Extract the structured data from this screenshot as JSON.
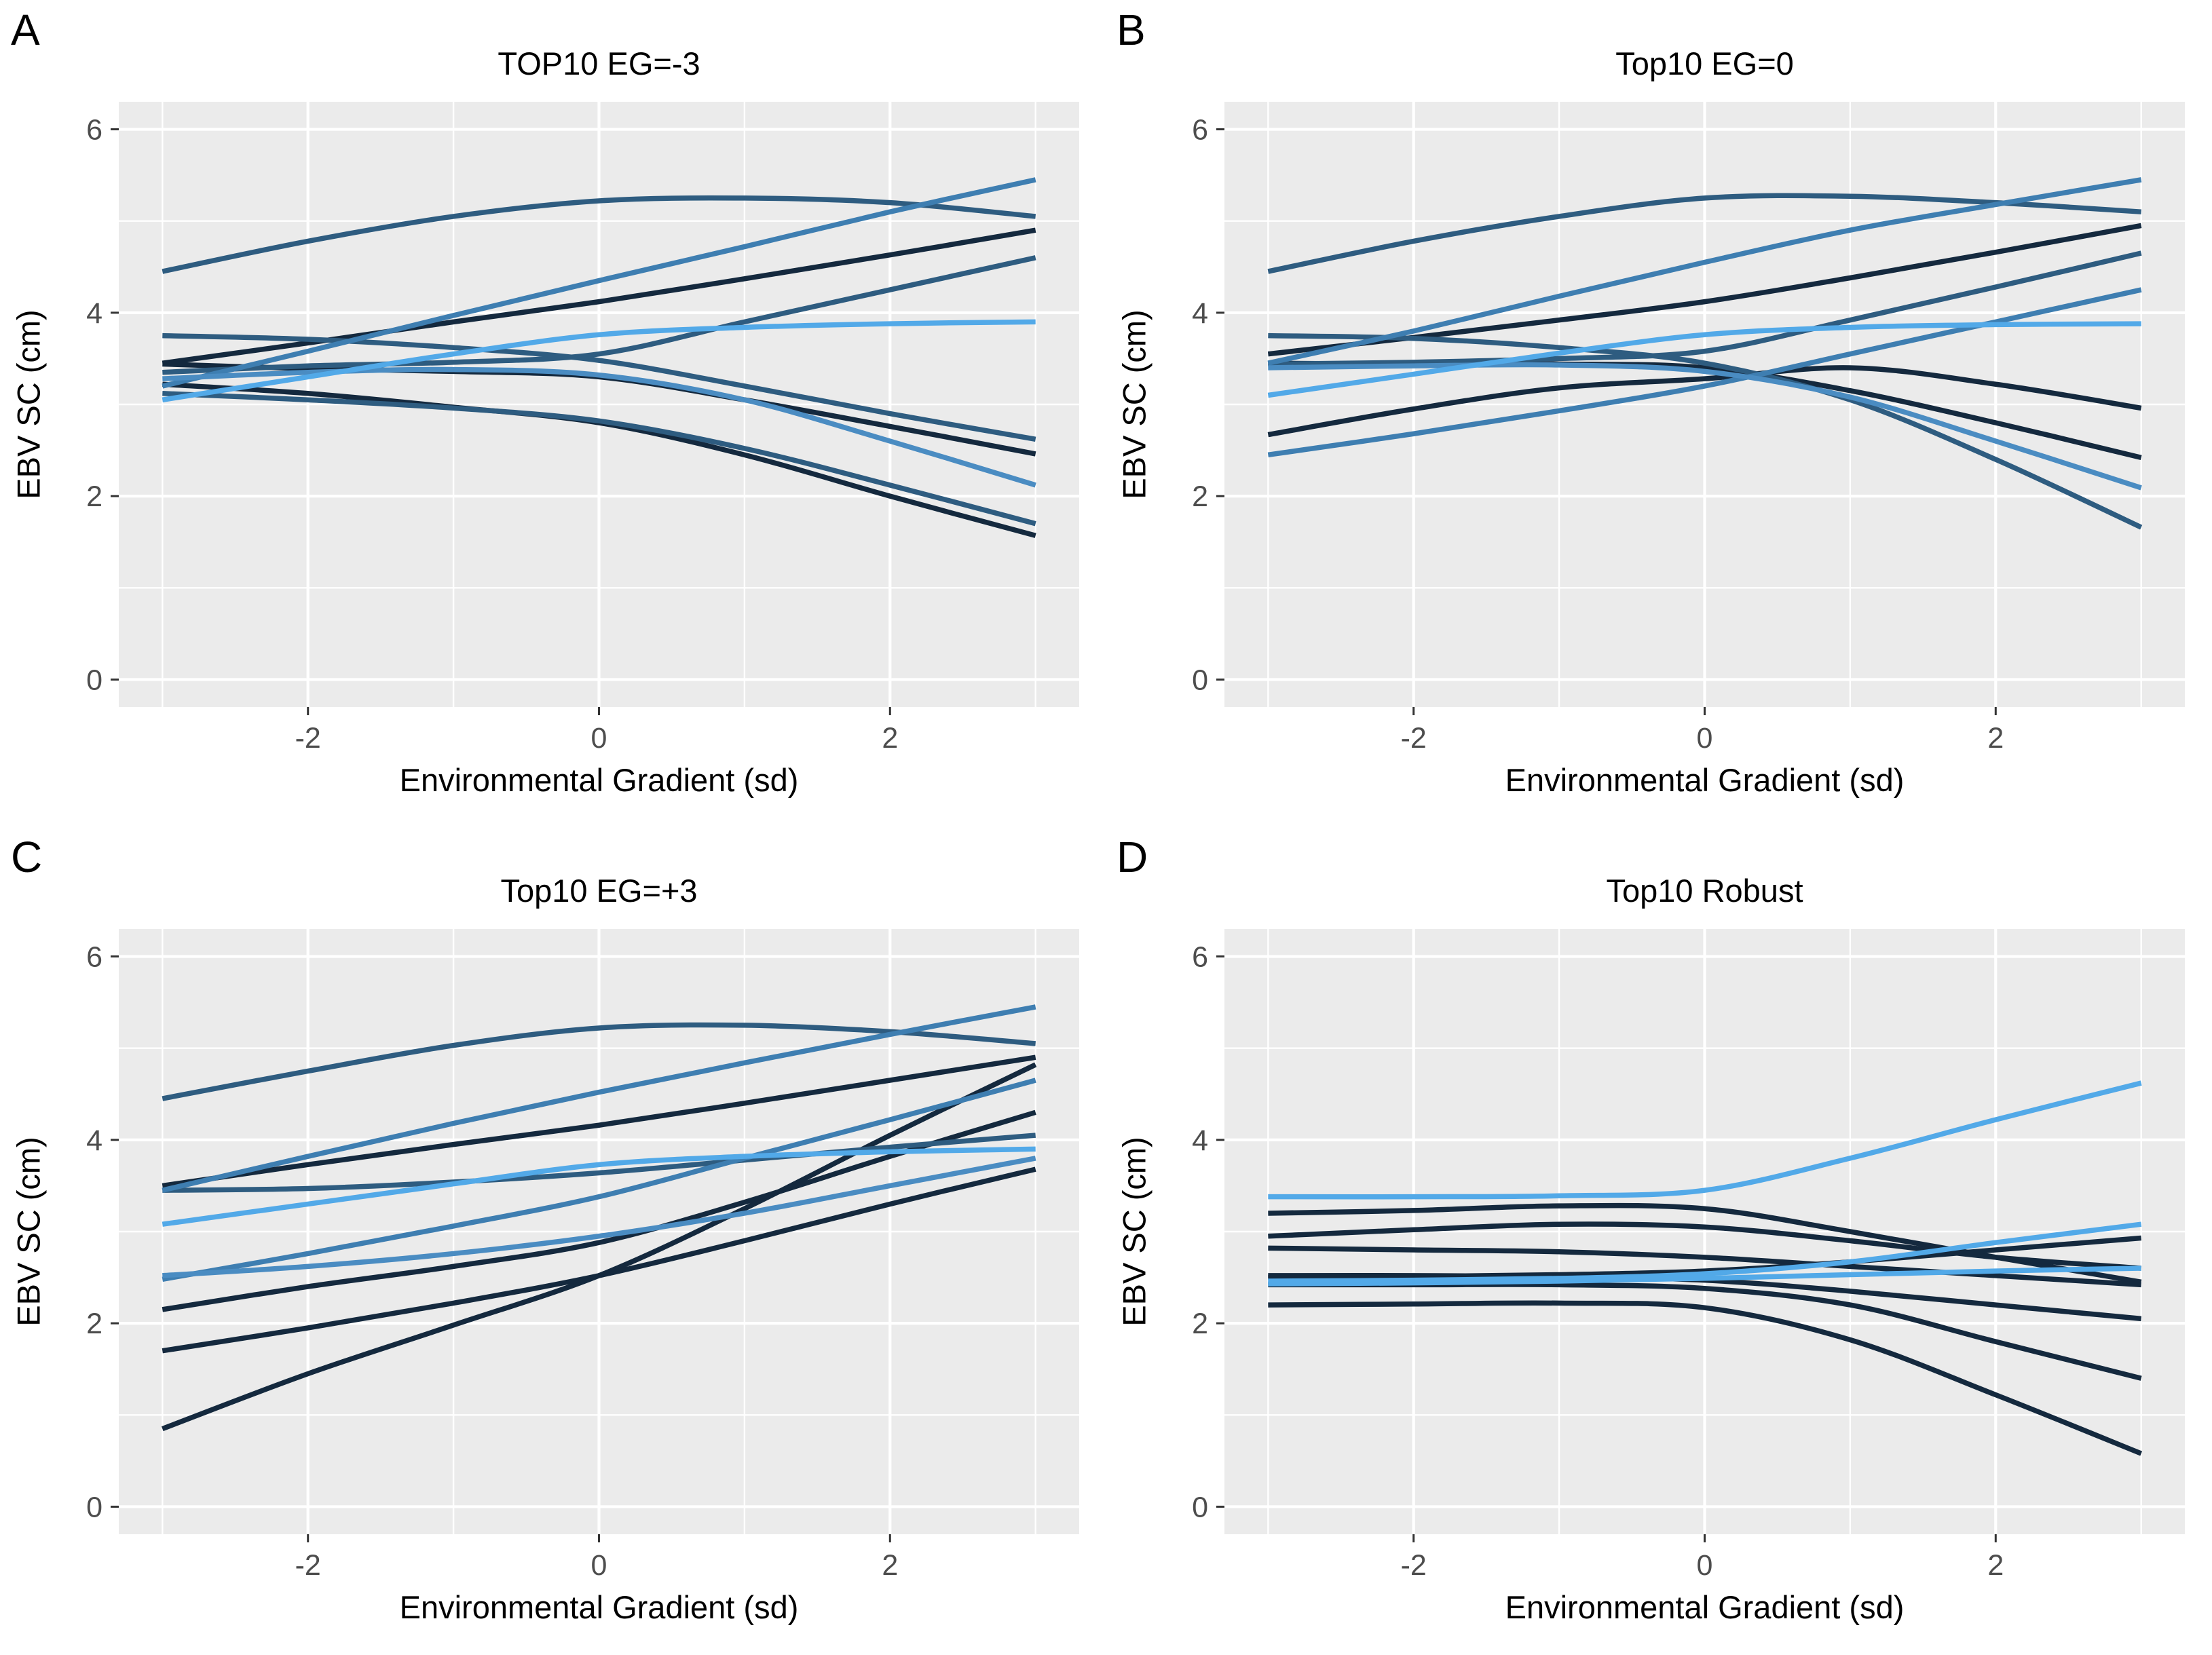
{
  "style": {
    "page_bg": "#FFFFFF",
    "panel_bg": "#EBEBEB",
    "grid_color": "#FFFFFF",
    "tick_color": "#333333",
    "tick_text_color": "#4D4D4D",
    "text_color": "#000000",
    "palette": {
      "navy": "#14293E",
      "steel_blue": "#2E5C80",
      "medium_blue": "#3E7EB1",
      "medium_light_blue": "#4A8CC2",
      "light_blue": "#52A9E8"
    }
  },
  "chart_data": [
    {
      "type": "line",
      "panel_label": "A",
      "title": "TOP10 EG=-3",
      "xlabel": "Environmental Gradient (sd)",
      "ylabel": "EBV SC (cm)",
      "x": [
        -3,
        -2,
        -1,
        0,
        1,
        2,
        3
      ],
      "xlim": [
        -3.3,
        3.3
      ],
      "ylim": [
        -0.3,
        6.3
      ],
      "x_ticks": [
        -2,
        0,
        2
      ],
      "y_ticks": [
        0,
        2,
        4,
        6
      ],
      "x_minor": [
        -3,
        -1,
        1,
        3
      ],
      "y_minor": [
        1,
        3,
        5
      ],
      "grid": true,
      "legend": "none",
      "series": [
        {
          "name": "line-1",
          "color": "#14293E",
          "values": [
            3.45,
            3.67,
            3.9,
            4.12,
            4.37,
            4.63,
            4.9
          ]
        },
        {
          "name": "line-2",
          "color": "#14293E",
          "values": [
            3.44,
            3.39,
            3.36,
            3.3,
            3.05,
            2.76,
            2.46
          ]
        },
        {
          "name": "line-3",
          "color": "#14293E",
          "values": [
            3.22,
            3.12,
            2.97,
            2.8,
            2.45,
            2.0,
            1.57
          ]
        },
        {
          "name": "line-4",
          "color": "#2E5C80",
          "values": [
            4.45,
            4.78,
            5.05,
            5.22,
            5.25,
            5.2,
            5.05
          ]
        },
        {
          "name": "line-5",
          "color": "#2E5C80",
          "values": [
            3.35,
            3.42,
            3.46,
            3.55,
            3.9,
            4.25,
            4.6
          ]
        },
        {
          "name": "line-6",
          "color": "#2E5C80",
          "values": [
            3.75,
            3.71,
            3.62,
            3.48,
            3.2,
            2.9,
            2.62
          ]
        },
        {
          "name": "line-7",
          "color": "#2E5C80",
          "values": [
            3.12,
            3.05,
            2.96,
            2.82,
            2.52,
            2.12,
            1.7
          ]
        },
        {
          "name": "line-8",
          "color": "#3E7EB1",
          "values": [
            3.2,
            3.58,
            3.97,
            4.35,
            4.72,
            5.1,
            5.45
          ]
        },
        {
          "name": "line-9",
          "color": "#4A8CC2",
          "values": [
            3.28,
            3.35,
            3.38,
            3.32,
            3.05,
            2.6,
            2.12
          ]
        },
        {
          "name": "line-10",
          "color": "#52A9E8",
          "values": [
            3.05,
            3.3,
            3.55,
            3.76,
            3.84,
            3.88,
            3.9
          ]
        }
      ]
    },
    {
      "type": "line",
      "panel_label": "B",
      "title": "Top10 EG=0",
      "xlabel": "Environmental Gradient (sd)",
      "ylabel": "EBV SC (cm)",
      "x": [
        -3,
        -2,
        -1,
        0,
        1,
        2,
        3
      ],
      "xlim": [
        -3.3,
        3.3
      ],
      "ylim": [
        -0.3,
        6.3
      ],
      "x_ticks": [
        -2,
        0,
        2
      ],
      "y_ticks": [
        0,
        2,
        4,
        6
      ],
      "x_minor": [
        -3,
        -1,
        1,
        3
      ],
      "y_minor": [
        1,
        3,
        5
      ],
      "grid": true,
      "legend": "none",
      "series": [
        {
          "name": "line-1",
          "color": "#14293E",
          "values": [
            3.55,
            3.73,
            3.92,
            4.12,
            4.38,
            4.66,
            4.95
          ]
        },
        {
          "name": "line-2",
          "color": "#14293E",
          "values": [
            2.67,
            2.95,
            3.18,
            3.28,
            3.4,
            3.22,
            2.96
          ]
        },
        {
          "name": "line-3",
          "color": "#14293E",
          "values": [
            3.45,
            3.44,
            3.44,
            3.4,
            3.15,
            2.8,
            2.42
          ]
        },
        {
          "name": "line-4",
          "color": "#2E5C80",
          "values": [
            4.45,
            4.78,
            5.05,
            5.25,
            5.27,
            5.2,
            5.1
          ]
        },
        {
          "name": "line-5",
          "color": "#2E5C80",
          "values": [
            3.44,
            3.46,
            3.5,
            3.58,
            3.92,
            4.28,
            4.65
          ]
        },
        {
          "name": "line-6",
          "color": "#2E5C80",
          "values": [
            3.75,
            3.72,
            3.62,
            3.45,
            3.05,
            2.4,
            1.66
          ]
        },
        {
          "name": "line-7",
          "color": "#3E7EB1",
          "values": [
            3.45,
            3.8,
            4.18,
            4.55,
            4.9,
            5.18,
            5.45
          ]
        },
        {
          "name": "line-8",
          "color": "#3E7EB1",
          "values": [
            2.45,
            2.68,
            2.93,
            3.2,
            3.55,
            3.9,
            4.25
          ]
        },
        {
          "name": "line-9",
          "color": "#4A8CC2",
          "values": [
            3.4,
            3.42,
            3.43,
            3.36,
            3.08,
            2.6,
            2.09
          ]
        },
        {
          "name": "line-10",
          "color": "#52A9E8",
          "values": [
            3.1,
            3.33,
            3.56,
            3.76,
            3.84,
            3.87,
            3.88
          ]
        }
      ]
    },
    {
      "type": "line",
      "panel_label": "C",
      "title": "Top10 EG=+3",
      "xlabel": "Environmental Gradient (sd)",
      "ylabel": "EBV SC (cm)",
      "x": [
        -3,
        -2,
        -1,
        0,
        1,
        2,
        3
      ],
      "xlim": [
        -3.3,
        3.3
      ],
      "ylim": [
        -0.3,
        6.3
      ],
      "x_ticks": [
        -2,
        0,
        2
      ],
      "y_ticks": [
        0,
        2,
        4,
        6
      ],
      "x_minor": [
        -3,
        -1,
        1,
        3
      ],
      "y_minor": [
        1,
        3,
        5
      ],
      "grid": true,
      "legend": "none",
      "series": [
        {
          "name": "line-1",
          "color": "#14293E",
          "values": [
            3.5,
            3.73,
            3.95,
            4.16,
            4.4,
            4.65,
            4.9
          ]
        },
        {
          "name": "line-2",
          "color": "#14293E",
          "values": [
            0.85,
            1.45,
            1.98,
            2.52,
            3.25,
            4.05,
            4.82
          ]
        },
        {
          "name": "line-3",
          "color": "#14293E",
          "values": [
            2.15,
            2.4,
            2.62,
            2.88,
            3.32,
            3.82,
            4.3
          ]
        },
        {
          "name": "line-4",
          "color": "#14293E",
          "values": [
            1.7,
            1.95,
            2.22,
            2.52,
            2.9,
            3.3,
            3.68
          ]
        },
        {
          "name": "line-5",
          "color": "#2E5C80",
          "values": [
            4.45,
            4.75,
            5.03,
            5.22,
            5.25,
            5.18,
            5.05
          ]
        },
        {
          "name": "line-6",
          "color": "#2E5C80",
          "values": [
            3.45,
            3.47,
            3.54,
            3.64,
            3.78,
            3.92,
            4.05
          ]
        },
        {
          "name": "line-7",
          "color": "#3E7EB1",
          "values": [
            3.45,
            3.82,
            4.18,
            4.52,
            4.84,
            5.15,
            5.45
          ]
        },
        {
          "name": "line-8",
          "color": "#3E7EB1",
          "values": [
            2.48,
            2.76,
            3.06,
            3.38,
            3.8,
            4.22,
            4.65
          ]
        },
        {
          "name": "line-9",
          "color": "#4A8CC2",
          "values": [
            2.52,
            2.62,
            2.76,
            2.95,
            3.2,
            3.5,
            3.8
          ]
        },
        {
          "name": "line-10",
          "color": "#52A9E8",
          "values": [
            3.08,
            3.3,
            3.52,
            3.73,
            3.82,
            3.87,
            3.9
          ]
        }
      ]
    },
    {
      "type": "line",
      "panel_label": "D",
      "title": "Top10 Robust",
      "xlabel": "Environmental Gradient (sd)",
      "ylabel": "EBV SC (cm)",
      "x": [
        -3,
        -2,
        -1,
        0,
        1,
        2,
        3
      ],
      "xlim": [
        -3.3,
        3.3
      ],
      "ylim": [
        -0.3,
        6.3
      ],
      "x_ticks": [
        -2,
        0,
        2
      ],
      "y_ticks": [
        0,
        2,
        4,
        6
      ],
      "x_minor": [
        -3,
        -1,
        1,
        3
      ],
      "y_minor": [
        1,
        3,
        5
      ],
      "grid": true,
      "legend": "none",
      "series": [
        {
          "name": "line-1",
          "color": "#14293E",
          "values": [
            3.2,
            3.23,
            3.28,
            3.25,
            3.0,
            2.72,
            2.45
          ]
        },
        {
          "name": "line-2",
          "color": "#14293E",
          "values": [
            2.95,
            3.02,
            3.08,
            3.05,
            2.9,
            2.72,
            2.6
          ]
        },
        {
          "name": "line-3",
          "color": "#14293E",
          "values": [
            2.82,
            2.8,
            2.78,
            2.72,
            2.62,
            2.52,
            2.42
          ]
        },
        {
          "name": "line-4",
          "color": "#14293E",
          "values": [
            2.5,
            2.51,
            2.53,
            2.57,
            2.67,
            2.8,
            2.93
          ]
        },
        {
          "name": "line-5",
          "color": "#14293E",
          "values": [
            2.52,
            2.52,
            2.51,
            2.47,
            2.35,
            2.2,
            2.05
          ]
        },
        {
          "name": "line-6",
          "color": "#14293E",
          "values": [
            2.42,
            2.42,
            2.42,
            2.38,
            2.2,
            1.8,
            1.4
          ]
        },
        {
          "name": "line-7",
          "color": "#14293E",
          "values": [
            2.2,
            2.21,
            2.22,
            2.17,
            1.82,
            1.22,
            0.58
          ]
        },
        {
          "name": "line-8",
          "color": "#52A9E8",
          "values": [
            3.38,
            3.38,
            3.39,
            3.45,
            3.8,
            4.22,
            4.62
          ]
        },
        {
          "name": "line-9",
          "color": "#52A9E8",
          "values": [
            2.46,
            2.47,
            2.49,
            2.54,
            2.67,
            2.88,
            3.08
          ]
        },
        {
          "name": "line-10",
          "color": "#52A9E8",
          "values": [
            2.43,
            2.44,
            2.46,
            2.49,
            2.53,
            2.57,
            2.6
          ]
        }
      ]
    }
  ]
}
